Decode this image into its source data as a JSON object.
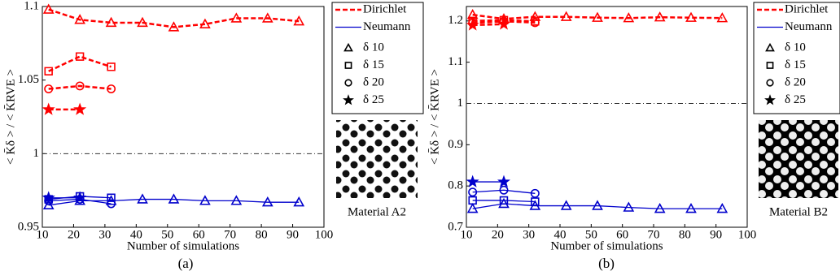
{
  "chart_data": [
    {
      "type": "line",
      "caption": "(a)",
      "xlabel": "Number of simulations",
      "ylabel": "< K̄δ > / < K̄RVE >",
      "xlim": [
        10,
        100
      ],
      "xticks": [
        10,
        20,
        30,
        40,
        50,
        60,
        70,
        80,
        90,
        100
      ],
      "ylim": [
        0.95,
        1.1
      ],
      "yticks": [
        0.95,
        1,
        1.05,
        1.1
      ],
      "reference_line": 1,
      "image_label": "Material A2",
      "legend_lines": [
        {
          "label": "Dirichlet",
          "color": "#ff0000",
          "dash": "dashed"
        },
        {
          "label": "Neumann",
          "color": "#0000cc",
          "dash": "solid"
        }
      ],
      "legend_markers": [
        {
          "label": "δ 10",
          "marker": "triangle"
        },
        {
          "label": "δ 15",
          "marker": "square"
        },
        {
          "label": "δ 20",
          "marker": "circle"
        },
        {
          "label": "δ 25",
          "marker": "star"
        }
      ],
      "series": [
        {
          "color": "#ff0000",
          "dash": "dashed",
          "marker": "triangle",
          "x": [
            12,
            22,
            32,
            42,
            52,
            62,
            72,
            82,
            92
          ],
          "values": [
            1.098,
            1.091,
            1.089,
            1.089,
            1.086,
            1.088,
            1.092,
            1.092,
            1.09
          ]
        },
        {
          "color": "#ff0000",
          "dash": "dashed",
          "marker": "square",
          "x": [
            12,
            22,
            32
          ],
          "values": [
            1.056,
            1.066,
            1.059
          ]
        },
        {
          "color": "#ff0000",
          "dash": "dashed",
          "marker": "circle",
          "x": [
            12,
            22,
            32
          ],
          "values": [
            1.044,
            1.046,
            1.044
          ]
        },
        {
          "color": "#ff0000",
          "dash": "dashed",
          "marker": "star",
          "x": [
            12,
            22
          ],
          "values": [
            1.03,
            1.03
          ]
        },
        {
          "color": "#0000cc",
          "dash": "solid",
          "marker": "triangle",
          "x": [
            12,
            22,
            32,
            42,
            52,
            62,
            72,
            82,
            92
          ],
          "values": [
            0.965,
            0.968,
            0.968,
            0.969,
            0.969,
            0.968,
            0.968,
            0.967,
            0.967
          ]
        },
        {
          "color": "#0000cc",
          "dash": "solid",
          "marker": "square",
          "x": [
            12,
            22,
            32
          ],
          "values": [
            0.969,
            0.971,
            0.97
          ]
        },
        {
          "color": "#0000cc",
          "dash": "solid",
          "marker": "circle",
          "x": [
            12,
            22,
            32
          ],
          "values": [
            0.968,
            0.969,
            0.966
          ]
        },
        {
          "color": "#0000cc",
          "dash": "solid",
          "marker": "star",
          "x": [
            12,
            22
          ],
          "values": [
            0.97,
            0.97
          ]
        }
      ]
    },
    {
      "type": "line",
      "caption": "(b)",
      "xlabel": "Number of simulations",
      "ylabel": "< K̄δ > / < K̄RVE >",
      "xlim": [
        10,
        100
      ],
      "xticks": [
        10,
        20,
        30,
        40,
        50,
        60,
        70,
        80,
        90,
        100
      ],
      "ylim": [
        0.7,
        1.235
      ],
      "yticks": [
        0.7,
        0.8,
        0.9,
        1,
        1.1,
        1.2
      ],
      "reference_line": 1,
      "image_label": "Material B2",
      "legend_lines": [
        {
          "label": "Dirichlet",
          "color": "#ff0000",
          "dash": "dashed"
        },
        {
          "label": "Neumann",
          "color": "#0000cc",
          "dash": "solid"
        }
      ],
      "legend_markers": [
        {
          "label": "δ 10",
          "marker": "triangle"
        },
        {
          "label": "δ 15",
          "marker": "square"
        },
        {
          "label": "δ 20",
          "marker": "circle"
        },
        {
          "label": "δ 25",
          "marker": "star"
        }
      ],
      "series": [
        {
          "color": "#ff0000",
          "dash": "dashed",
          "marker": "triangle",
          "x": [
            12,
            22,
            32,
            42,
            52,
            62,
            72,
            82,
            92
          ],
          "values": [
            1.215,
            1.205,
            1.21,
            1.21,
            1.208,
            1.207,
            1.209,
            1.208,
            1.207
          ]
        },
        {
          "color": "#ff0000",
          "dash": "dashed",
          "marker": "square",
          "x": [
            12,
            22,
            32
          ],
          "values": [
            1.2,
            1.202,
            1.199
          ]
        },
        {
          "color": "#ff0000",
          "dash": "dashed",
          "marker": "circle",
          "x": [
            12,
            22,
            32
          ],
          "values": [
            1.195,
            1.199,
            1.196
          ]
        },
        {
          "color": "#ff0000",
          "dash": "dashed",
          "marker": "star",
          "x": [
            12,
            22
          ],
          "values": [
            1.19,
            1.192
          ]
        },
        {
          "color": "#0000cc",
          "dash": "solid",
          "marker": "triangle",
          "x": [
            12,
            22,
            32,
            42,
            52,
            62,
            72,
            82,
            92
          ],
          "values": [
            0.745,
            0.757,
            0.752,
            0.752,
            0.752,
            0.748,
            0.745,
            0.745,
            0.745
          ]
        },
        {
          "color": "#0000cc",
          "dash": "solid",
          "marker": "square",
          "x": [
            12,
            22,
            32
          ],
          "values": [
            0.765,
            0.765,
            0.762
          ]
        },
        {
          "color": "#0000cc",
          "dash": "solid",
          "marker": "circle",
          "x": [
            12,
            22,
            32
          ],
          "values": [
            0.785,
            0.79,
            0.782
          ]
        },
        {
          "color": "#0000cc",
          "dash": "solid",
          "marker": "star",
          "x": [
            12,
            22
          ],
          "values": [
            0.81,
            0.81
          ]
        }
      ]
    }
  ]
}
